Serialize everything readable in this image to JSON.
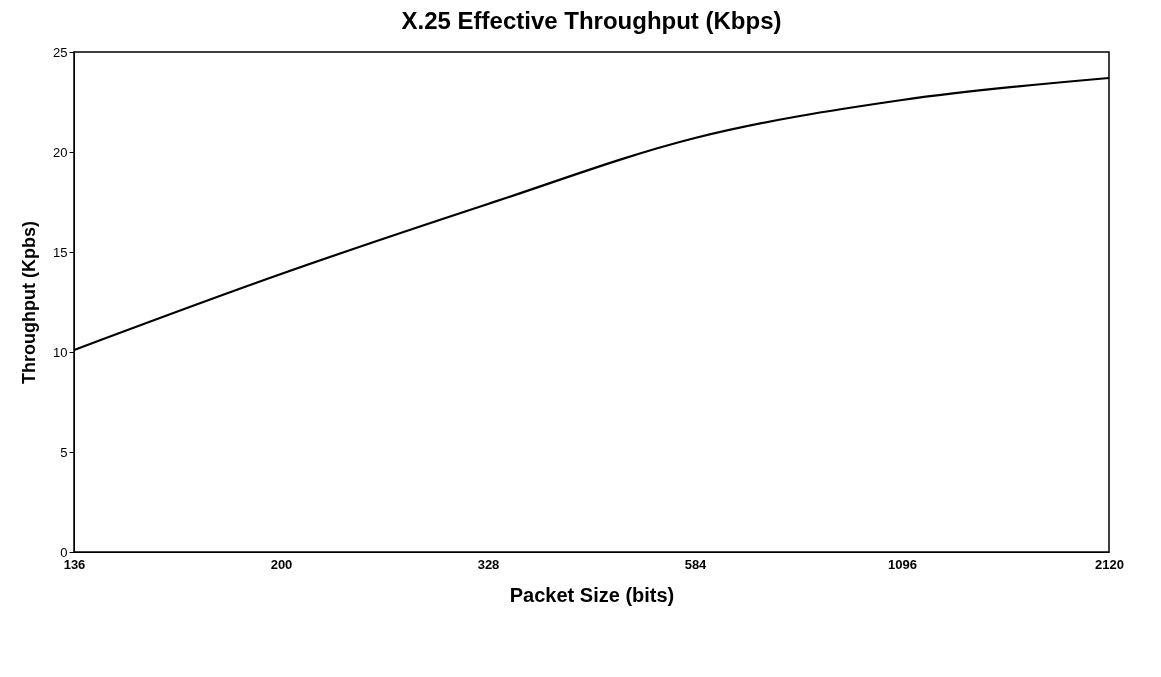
{
  "chart_data": {
    "type": "line",
    "title": "X.25 Effective Throughput (Kbps)",
    "xlabel": "Packet Size (bits)",
    "ylabel": "Throughput (Kpbs)",
    "categories": [
      "136",
      "200",
      "328",
      "584",
      "1096",
      "2120"
    ],
    "series": [
      {
        "color": "#000000",
        "values": [
          10.1,
          13.9,
          17.4,
          20.7,
          22.6,
          23.7
        ]
      }
    ],
    "ylim": [
      0,
      25
    ],
    "yticks": [
      0,
      5,
      10,
      15,
      20,
      25
    ],
    "grid": false,
    "marker": "none",
    "line_style": "solid"
  }
}
